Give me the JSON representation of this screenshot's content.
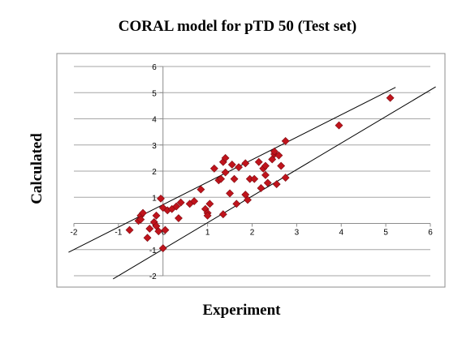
{
  "chart_data": {
    "type": "scatter",
    "title": "CORAL model for pTD 50 (Test set)",
    "xlabel": "Experiment",
    "ylabel": "Calculated",
    "xlim": [
      -2,
      6
    ],
    "ylim": [
      -2,
      6
    ],
    "x_ticks": [
      "-2",
      "-1",
      "0",
      "1",
      "2",
      "3",
      "4",
      "5",
      "6"
    ],
    "y_ticks": [
      "-2",
      "-1",
      "0",
      "1",
      "2",
      "3",
      "4",
      "5",
      "6"
    ],
    "grid": "horizontal",
    "legend": "none",
    "marker": "diamond",
    "colors": {
      "marker": "#c0141c",
      "marker_edge": "#7a0a10",
      "grid": "#a6a6a6",
      "frame": "#8c8c8c",
      "lines": "#000000"
    },
    "series": [
      {
        "points": [
          [
            -0.75,
            -0.25
          ],
          [
            -0.55,
            0.1
          ],
          [
            -0.5,
            0.3
          ],
          [
            -0.45,
            0.4
          ],
          [
            -0.5,
            0.15
          ],
          [
            -0.35,
            -0.55
          ],
          [
            -0.3,
            -0.2
          ],
          [
            -0.2,
            0.05
          ],
          [
            -0.15,
            -0.1
          ],
          [
            -0.1,
            -0.3
          ],
          [
            -0.15,
            0.3
          ],
          [
            -0.05,
            0.95
          ],
          [
            0.0,
            0.6
          ],
          [
            0.0,
            -0.95
          ],
          [
            0.05,
            -0.25
          ],
          [
            0.1,
            0.5
          ],
          [
            0.2,
            0.55
          ],
          [
            0.3,
            0.65
          ],
          [
            0.35,
            0.2
          ],
          [
            0.4,
            0.8
          ],
          [
            0.6,
            0.75
          ],
          [
            0.7,
            0.85
          ],
          [
            0.85,
            1.3
          ],
          [
            0.95,
            0.55
          ],
          [
            1.0,
            0.4
          ],
          [
            1.05,
            0.75
          ],
          [
            1.0,
            0.3
          ],
          [
            1.15,
            2.1
          ],
          [
            1.25,
            1.65
          ],
          [
            1.3,
            1.7
          ],
          [
            1.35,
            2.35
          ],
          [
            1.4,
            2.5
          ],
          [
            1.4,
            1.95
          ],
          [
            1.35,
            0.35
          ],
          [
            1.5,
            1.15
          ],
          [
            1.55,
            2.25
          ],
          [
            1.6,
            1.7
          ],
          [
            1.65,
            0.75
          ],
          [
            1.7,
            2.15
          ],
          [
            1.85,
            1.1
          ],
          [
            1.85,
            2.3
          ],
          [
            1.9,
            0.9
          ],
          [
            1.95,
            1.7
          ],
          [
            2.05,
            1.7
          ],
          [
            2.15,
            2.35
          ],
          [
            2.2,
            1.35
          ],
          [
            2.25,
            2.1
          ],
          [
            2.3,
            2.2
          ],
          [
            2.35,
            1.55
          ],
          [
            2.3,
            1.85
          ],
          [
            2.45,
            2.45
          ],
          [
            2.5,
            2.65
          ],
          [
            2.5,
            2.75
          ],
          [
            2.55,
            1.5
          ],
          [
            2.6,
            2.6
          ],
          [
            2.65,
            2.2
          ],
          [
            2.75,
            3.15
          ],
          [
            2.75,
            1.75
          ],
          [
            3.95,
            3.75
          ],
          [
            5.1,
            4.8
          ]
        ]
      }
    ],
    "reference_lines": [
      {
        "from": [
          -2,
          -1
        ],
        "to": [
          5.1,
          5.1
        ]
      },
      {
        "from": [
          -1,
          -2
        ],
        "to": [
          6,
          5.1
        ]
      }
    ]
  }
}
